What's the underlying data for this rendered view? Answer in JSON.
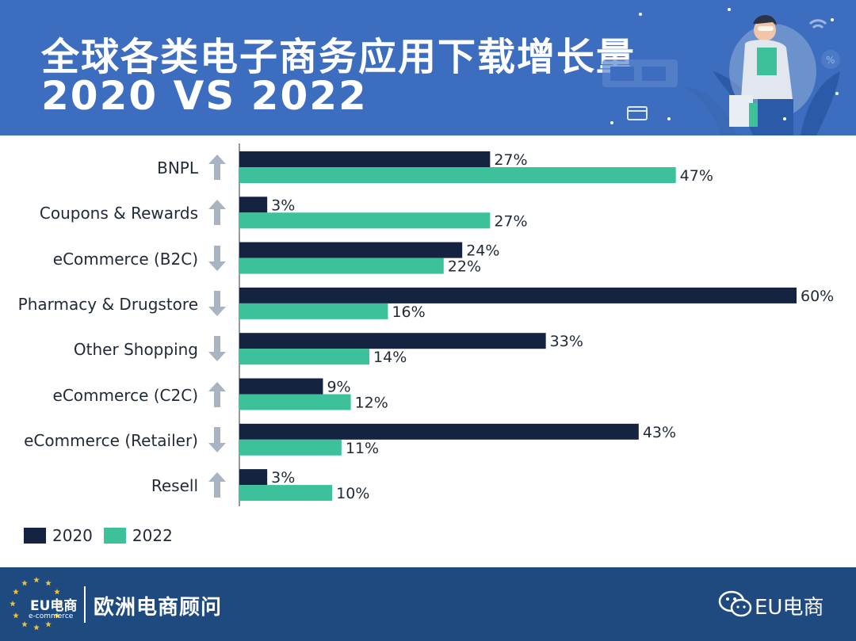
{
  "header": {
    "title_line1": "全球各类电子商务应用下载增长量",
    "title_line2": "2020 VS 2022"
  },
  "colors": {
    "series_2020": "#14233f",
    "series_2022": "#3cc19b",
    "arrow": "#a9b4c2",
    "header_bg": "#3d6dbf",
    "footer_bg": "#1f4a80"
  },
  "chart_data": {
    "type": "bar",
    "orientation": "horizontal",
    "categories": [
      "BNPL",
      "Coupons & Rewards",
      "eCommerce (B2C)",
      "Pharmacy & Drugstore",
      "Other Shopping",
      "eCommerce (C2C)",
      "eCommerce (Retailer)",
      "Resell"
    ],
    "trend": [
      "up",
      "up",
      "down",
      "down",
      "down",
      "up",
      "down",
      "up"
    ],
    "series": [
      {
        "name": "2020",
        "values": [
          27,
          3,
          24,
          60,
          33,
          9,
          43,
          3
        ],
        "labels": [
          "27%",
          "3%",
          "24%",
          "60%",
          "33%",
          "9%",
          "43%",
          "3%"
        ]
      },
      {
        "name": "2022",
        "values": [
          47,
          27,
          22,
          16,
          14,
          12,
          11,
          10
        ],
        "labels": [
          "47%",
          "27%",
          "22%",
          "16%",
          "14%",
          "12%",
          "11%",
          "10%"
        ]
      }
    ],
    "unit": "%",
    "xlim": [
      0,
      60
    ],
    "grid": false,
    "legend_position": "bottom-left"
  },
  "legend": {
    "item_2020": "2020",
    "item_2022": "2022"
  },
  "footer": {
    "logo_text": "EU电商",
    "logo_sub": "e-commerce",
    "brand": "欧洲电商顾问",
    "wechat_account": "EU电商",
    "wechat_icon": "wechat-icon"
  }
}
